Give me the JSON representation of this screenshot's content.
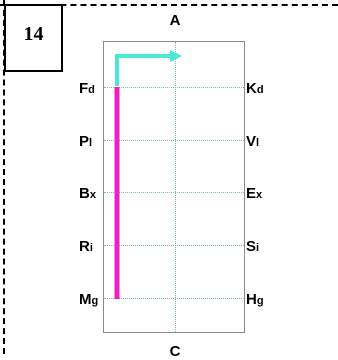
{
  "puzzle_number": "14",
  "top_label": "A",
  "bottom_label": "C",
  "left_points": [
    {
      "letter": "F",
      "sub": "d"
    },
    {
      "letter": "P",
      "sub": "l"
    },
    {
      "letter": "B",
      "sub": "x"
    },
    {
      "letter": "R",
      "sub": "i"
    },
    {
      "letter": "M",
      "sub": "g"
    }
  ],
  "right_points": [
    {
      "letter": "K",
      "sub": "d"
    },
    {
      "letter": "V",
      "sub": "l"
    },
    {
      "letter": "E",
      "sub": "x"
    },
    {
      "letter": "S",
      "sub": "i"
    },
    {
      "letter": "H",
      "sub": "g"
    }
  ],
  "colors": {
    "arrow": "#4de8d4",
    "path": "#ee1fc6"
  }
}
